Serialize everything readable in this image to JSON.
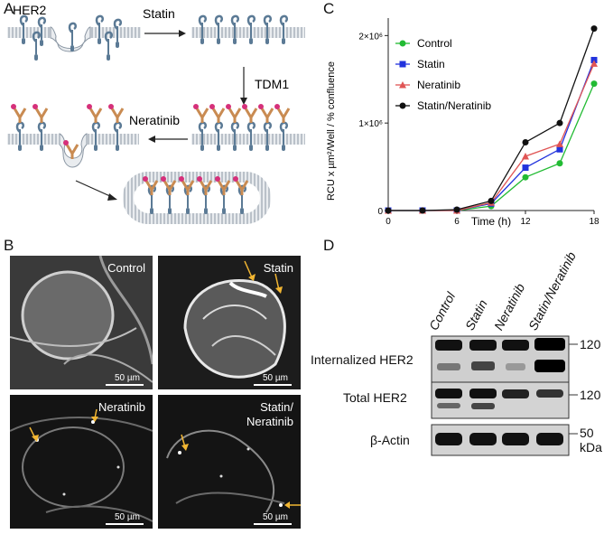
{
  "panels": {
    "a": "A",
    "b": "B",
    "c": "C",
    "d": "D"
  },
  "schematic": {
    "her2_label": "HER2",
    "statin_label": "Statin",
    "tdm1_label": "TDM1",
    "neratinib_label": "Neratinib"
  },
  "micrographs": [
    {
      "label": "Control",
      "scale": "50 µm"
    },
    {
      "label": "Statin",
      "scale": "50 µm"
    },
    {
      "label": "Neratinib",
      "scale": "50 µm"
    },
    {
      "label": "Statin/\nNeratinib",
      "scale": "50 µm"
    }
  ],
  "chart_data": {
    "type": "line",
    "xlabel": "Time (h)",
    "ylabel": "RCU x µm²/Well / % confluence",
    "x": [
      0,
      3,
      6,
      9,
      12,
      15,
      18
    ],
    "xticks": [
      "0",
      "6",
      "12",
      "18"
    ],
    "xlim": [
      0,
      18
    ],
    "ylim": [
      0,
      2200000
    ],
    "yticks": [
      "0",
      "1×10⁶",
      "2×10⁶"
    ],
    "legend_position": "top-left",
    "series": [
      {
        "name": "Control",
        "color": "#22bb33",
        "marker": "circle",
        "values": [
          0,
          0,
          0,
          50000,
          380000,
          540000,
          1450000
        ]
      },
      {
        "name": "Statin",
        "color": "#2233dd",
        "marker": "square",
        "values": [
          0,
          0,
          0,
          80000,
          490000,
          700000,
          1720000
        ]
      },
      {
        "name": "Neratinib",
        "color": "#e05555",
        "marker": "triangle",
        "values": [
          0,
          0,
          0,
          90000,
          620000,
          760000,
          1680000
        ]
      },
      {
        "name": "Statin/Neratinib",
        "color": "#111111",
        "marker": "circle",
        "values": [
          0,
          0,
          10000,
          110000,
          780000,
          1000000,
          2080000
        ]
      }
    ]
  },
  "blot": {
    "lanes": [
      "Control",
      "Statin",
      "Neratinib",
      "Statin/Neratinib"
    ],
    "rows": [
      {
        "label": "Internalized HER2",
        "marker": "120"
      },
      {
        "label": "Total HER2",
        "marker": "120"
      },
      {
        "label": "β-Actin",
        "marker": "50"
      }
    ],
    "unit": "kDa"
  }
}
